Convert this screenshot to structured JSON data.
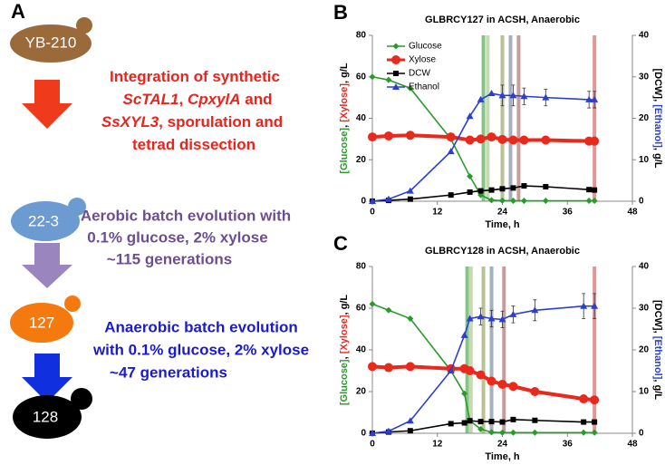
{
  "panel_a": {
    "label": "A",
    "nodes": [
      "YB-210",
      "22-3",
      "127",
      "128"
    ],
    "steps": [
      {
        "lines": [
          [
            "Integration of synthetic"
          ],
          [
            "ScTAL1",
            ", ",
            "CpxylA",
            " and"
          ],
          [
            "SsXYL3",
            ", sporulation and"
          ],
          [
            "tetrad dissection"
          ]
        ]
      },
      {
        "lines": [
          [
            "Aerobic batch evolution with"
          ],
          [
            "0.1% glucose, 2% xylose"
          ],
          [
            "~115 generations"
          ]
        ]
      },
      {
        "lines": [
          [
            "Anaerobic batch evolution"
          ],
          [
            "with 0.1% glucose, 2% xylose"
          ],
          [
            "~47 generations"
          ]
        ]
      }
    ]
  },
  "chart_data": [
    {
      "type": "line",
      "panel_label": "B",
      "title": "GLBRCY127 in ACSH, Anaerobic",
      "xlabel": "Time, h",
      "ylabel": [
        "[Glucose]",
        ", ",
        "[Xylose]",
        ", g/L"
      ],
      "ylabel_colors": [
        "#2a9a2a",
        "#000000",
        "#e8291c",
        "#000000"
      ],
      "y2label": [
        "[DCW]",
        ", ",
        "[Ethanol]",
        ", g/L"
      ],
      "y2label_colors": [
        "#000000",
        "#000000",
        "#2a3fd0",
        "#000000"
      ],
      "xlim": [
        0,
        48
      ],
      "xticks": [
        0,
        12,
        24,
        36,
        48
      ],
      "ylim": [
        0,
        80
      ],
      "yticks": [
        0,
        20,
        40,
        60,
        80
      ],
      "y2lim": [
        0,
        40
      ],
      "y2ticks": [
        0,
        10,
        20,
        30,
        40
      ],
      "legend": "upper left",
      "vlines": [
        {
          "x": 20.5,
          "color": "#3a9a3a"
        },
        {
          "x": 21.3,
          "color": "#9ac47a"
        },
        {
          "x": 24,
          "color": "#8a9a4a"
        },
        {
          "x": 25.5,
          "color": "#6a7a9a"
        },
        {
          "x": 27,
          "color": "#a05a5a"
        },
        {
          "x": 41,
          "color": "#d05050"
        }
      ],
      "x": [
        0,
        3,
        7,
        14.5,
        18,
        20,
        22,
        24,
        26,
        28,
        32,
        40,
        41
      ],
      "series": [
        {
          "name": "Glucose",
          "color": "#2a9a2a",
          "marker": "diamond",
          "values": [
            60,
            58.5,
            54.5,
            30,
            12,
            3,
            0.5,
            0.3,
            0.2,
            0.2,
            0.2,
            0.2,
            0.2
          ]
        },
        {
          "name": "Xylose",
          "color": "#e8291c",
          "marker": "circle",
          "values": [
            31,
            31.5,
            31.8,
            31,
            29.5,
            30,
            31,
            29.8,
            29.5,
            29.5,
            29.5,
            29,
            29
          ]
        },
        {
          "name": "DCW",
          "color": "#000000",
          "marker": "square",
          "axis": "y2",
          "values": [
            0,
            0.2,
            0.5,
            1.5,
            2.2,
            2.5,
            2.7,
            3,
            3.2,
            3.7,
            3.5,
            2.8,
            2.7
          ]
        },
        {
          "name": "Ethanol",
          "color": "#2a3fd0",
          "marker": "triangle",
          "axis": "y2",
          "values": [
            0,
            0.5,
            2.5,
            12,
            20.5,
            24.5,
            26,
            25.5,
            25.5,
            25.3,
            25,
            24.5,
            24.5
          ],
          "errors": [
            0,
            0,
            0,
            0,
            0,
            0,
            0,
            2.5,
            2.5,
            2,
            2,
            2,
            2
          ]
        }
      ]
    },
    {
      "type": "line",
      "panel_label": "C",
      "title": "GLBRCY128 in ACSH, Anaerobic",
      "xlabel": "Time, h",
      "ylabel": [
        "[Glucose]",
        ", ",
        "[Xylose]",
        ", g/L"
      ],
      "ylabel_colors": [
        "#2a9a2a",
        "#000000",
        "#e8291c",
        "#000000"
      ],
      "y2label": [
        "[DCW]",
        ", ",
        "[Ethanol]",
        ", g/L"
      ],
      "y2label_colors": [
        "#000000",
        "#000000",
        "#2a3fd0",
        "#000000"
      ],
      "xlim": [
        0,
        48
      ],
      "xticks": [
        0,
        12,
        24,
        36,
        48
      ],
      "ylim": [
        0,
        80
      ],
      "yticks": [
        0,
        20,
        40,
        60,
        80
      ],
      "y2lim": [
        0,
        40
      ],
      "y2ticks": [
        0,
        10,
        20,
        30,
        40
      ],
      "vlines": [
        {
          "x": 17.5,
          "color": "#3a9a3a"
        },
        {
          "x": 18.2,
          "color": "#9ac47a"
        },
        {
          "x": 20.5,
          "color": "#8a9a4a"
        },
        {
          "x": 22,
          "color": "#6a7a9a"
        },
        {
          "x": 24.3,
          "color": "#a05a5a"
        },
        {
          "x": 41,
          "color": "#d05050"
        }
      ],
      "x": [
        0,
        3,
        7,
        14.5,
        17,
        18,
        20,
        22,
        24,
        26,
        30,
        39,
        41
      ],
      "series": [
        {
          "color": "#2a9a2a",
          "marker": "diamond",
          "values": [
            62,
            59,
            55,
            30,
            19,
            6,
            2,
            0.5,
            0.3,
            0.3,
            0.3,
            0.3,
            0.3
          ]
        },
        {
          "color": "#e8291c",
          "marker": "circle",
          "values": [
            32,
            31.5,
            32,
            31,
            31,
            30,
            28,
            25,
            23.5,
            22.5,
            20,
            16.5,
            16
          ]
        },
        {
          "color": "#000000",
          "marker": "square",
          "axis": "y2",
          "values": [
            0,
            0.3,
            0.6,
            2.3,
            2.5,
            3,
            2.8,
            2.8,
            2.7,
            3.3,
            3.1,
            2.7,
            2.7
          ]
        },
        {
          "color": "#2a3fd0",
          "marker": "triangle",
          "axis": "y2",
          "values": [
            0,
            0.5,
            3,
            15,
            23.5,
            27.5,
            28,
            27.5,
            27.3,
            28.5,
            29.5,
            30.5,
            30.5
          ],
          "errors": [
            0,
            0,
            0,
            0,
            0,
            0,
            2,
            2,
            2,
            2,
            2.5,
            3,
            3
          ]
        }
      ]
    }
  ]
}
